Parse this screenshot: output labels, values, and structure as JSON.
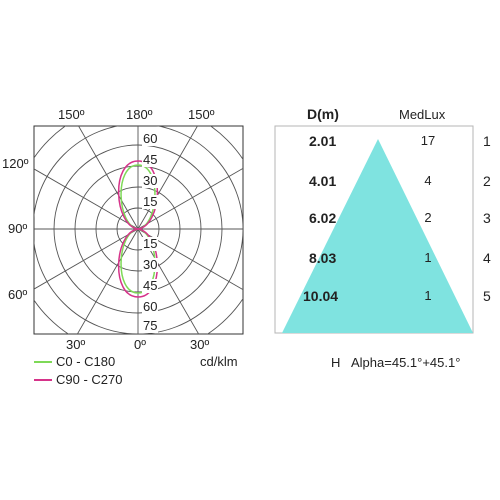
{
  "polar": {
    "angle_labels": {
      "top_left": "150º",
      "top_center": "180º",
      "top_right": "150º",
      "left_upper": "120º",
      "left_middle": "90º",
      "left_lower": "60º",
      "bottom_left": "30º",
      "bottom_center": "0º",
      "bottom_right": "30º"
    },
    "radial_ticks_upper": [
      "60",
      "45",
      "30",
      "15"
    ],
    "radial_ticks_lower": [
      "15",
      "30",
      "45",
      "60",
      "75"
    ],
    "unit": "cd/klm"
  },
  "legend": [
    {
      "label": "C0 - C180",
      "color": "#7ed957"
    },
    {
      "label": "C90 - C270",
      "color": "#d6338a"
    }
  ],
  "cone": {
    "header_distance": "D(m)",
    "header_lux": "MedLux",
    "color": "#7fe3e0",
    "rows": [
      {
        "distance": "2.01",
        "lux": "17",
        "index": "1"
      },
      {
        "distance": "4.01",
        "lux": "4",
        "index": "2"
      },
      {
        "distance": "6.02",
        "lux": "2",
        "index": "3"
      },
      {
        "distance": "8.03",
        "lux": "1",
        "index": "4"
      },
      {
        "distance": "10.04",
        "lux": "1",
        "index": "5"
      }
    ],
    "footer_h": "H",
    "footer_alpha": "Alpha=45.1°+45.1°"
  }
}
